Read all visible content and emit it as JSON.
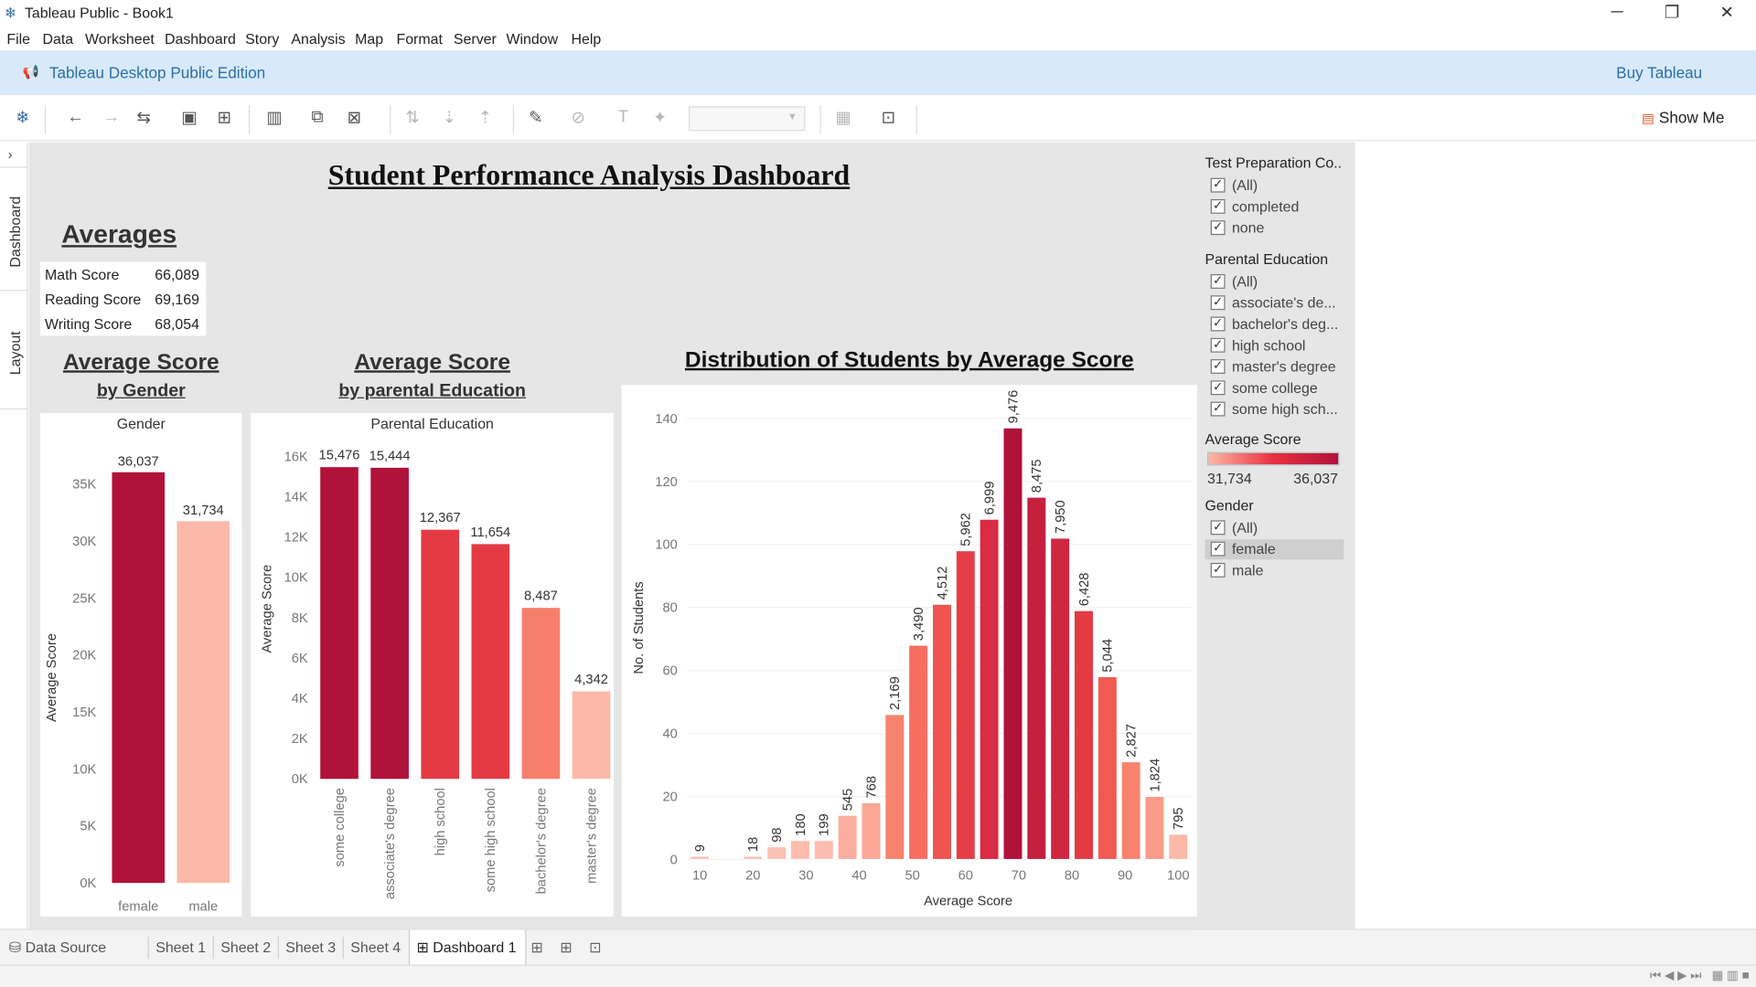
{
  "window": {
    "title": "Tableau Public - Book1",
    "controls": [
      "─",
      "❐",
      "✕"
    ]
  },
  "menu": [
    "File",
    "Data",
    "Worksheet",
    "Dashboard",
    "Story",
    "Analysis",
    "Map",
    "Format",
    "Server",
    "Window",
    "Help"
  ],
  "banner": {
    "edition": "Tableau Desktop Public Edition",
    "buy": "Buy Tableau"
  },
  "toolbar": {
    "show_me": "Show Me"
  },
  "side_tabs": [
    "Dashboard",
    "Layout"
  ],
  "dashboard": {
    "title": "Student Performance Analysis Dashboard",
    "averages_title": "Averages",
    "averages": [
      {
        "label": "Math Score",
        "value": "66,089"
      },
      {
        "label": "Reading Score",
        "value": "69,169"
      },
      {
        "label": "Writing Score",
        "value": "68,054"
      }
    ],
    "gender_title_1": "Average Score",
    "gender_title_2": "by Gender",
    "parental_title_1": "Average Score",
    "parental_title_2": "by parental Education",
    "dist_title": "Distribution of Students by Average Score"
  },
  "chart_data": [
    {
      "type": "bar",
      "header": "Gender",
      "ylabel": "Average Score",
      "ylim": [
        0,
        36037
      ],
      "yticks": [
        "0K",
        "5K",
        "10K",
        "15K",
        "20K",
        "25K",
        "30K",
        "35K"
      ],
      "categories": [
        "female",
        "male"
      ],
      "values": [
        36037,
        31734
      ],
      "labels": [
        "36,037",
        "31,734"
      ],
      "colors": [
        "#b0123a",
        "#fcb8a8"
      ]
    },
    {
      "type": "bar",
      "header": "Parental Education",
      "ylabel": "Average Score",
      "ylim": [
        0,
        16000
      ],
      "yticks": [
        "0K",
        "2K",
        "4K",
        "6K",
        "8K",
        "10K",
        "12K",
        "14K",
        "16K"
      ],
      "categories": [
        "some college",
        "associate's degree",
        "high school",
        "some high school",
        "bachelor's degree",
        "master's degree"
      ],
      "values": [
        15476,
        15444,
        12367,
        11654,
        8487,
        4342
      ],
      "labels": [
        "15,476",
        "15,444",
        "12,367",
        "11,654",
        "8,487",
        "4,342"
      ],
      "colors": [
        "#b0123a",
        "#b0123a",
        "#e33a44",
        "#e33a44",
        "#f77e6c",
        "#fcb8a8"
      ]
    },
    {
      "type": "bar",
      "title": "Distribution of Students by Average Score",
      "xlabel": "Average Score",
      "ylabel": "No. of Students",
      "xlim": [
        7.5,
        102.5
      ],
      "ylim": [
        0,
        140
      ],
      "xticks": [
        10,
        20,
        30,
        40,
        50,
        60,
        70,
        80,
        90,
        100
      ],
      "yticks": [
        0,
        20,
        40,
        60,
        80,
        100,
        120,
        140
      ],
      "bins": [
        {
          "x": 10,
          "count": 1,
          "label": "9",
          "color": "#fcc2b4"
        },
        {
          "x": 20,
          "count": 1,
          "label": "18",
          "color": "#fcc2b4"
        },
        {
          "x": 25,
          "count": 4,
          "label": "98",
          "color": "#fcc2b4"
        },
        {
          "x": 30,
          "count": 6,
          "label": "180",
          "color": "#fcbcae"
        },
        {
          "x": 35,
          "count": 6,
          "label": "199",
          "color": "#fcbcae"
        },
        {
          "x": 40,
          "count": 14,
          "label": "545",
          "color": "#fbae9e"
        },
        {
          "x": 45,
          "count": 18,
          "label": "768",
          "color": "#fba896"
        },
        {
          "x": 50,
          "count": 46,
          "label": "2,169",
          "color": "#f7836f"
        },
        {
          "x": 55,
          "count": 68,
          "label": "3,490",
          "color": "#f56e5f"
        },
        {
          "x": 60,
          "count": 81,
          "label": "4,512",
          "color": "#ee5551"
        },
        {
          "x": 65,
          "count": 98,
          "label": "5,962",
          "color": "#e63e47"
        },
        {
          "x": 70,
          "count": 108,
          "label": "6,999",
          "color": "#d82c42"
        },
        {
          "x": 75,
          "count": 137,
          "label": "9,476",
          "color": "#b0123a"
        },
        {
          "x": 80,
          "count": 115,
          "label": "8,475",
          "color": "#c51f3e"
        },
        {
          "x": 85,
          "count": 102,
          "label": "7,950",
          "color": "#d02741"
        },
        {
          "x": 90,
          "count": 79,
          "label": "6,428",
          "color": "#e33a44"
        },
        {
          "x": 95,
          "count": 58,
          "label": "5,044",
          "color": "#f05a53"
        },
        {
          "x": 100,
          "count": 31,
          "label": "2,827",
          "color": "#f7836f"
        },
        {
          "x": 105,
          "count": 20,
          "label": "1,824",
          "color": "#fa9a88"
        },
        {
          "x": 110,
          "count": 8,
          "label": "795",
          "color": "#fcb8a8"
        }
      ]
    }
  ],
  "filters": {
    "test_prep": {
      "title": "Test Preparation Co..",
      "items": [
        "(All)",
        "completed",
        "none"
      ]
    },
    "parental": {
      "title": "Parental Education",
      "items": [
        "(All)",
        "associate's de...",
        "bachelor's deg...",
        "high school",
        "master's degree",
        "some college",
        "some high sch..."
      ]
    },
    "legend": {
      "title": "Average Score",
      "min": "31,734",
      "max": "36,037"
    },
    "gender": {
      "title": "Gender",
      "items": [
        "(All)",
        "female",
        "male"
      ],
      "selected": "female"
    }
  },
  "sheet_tabs": [
    "Data Source",
    "Sheet 1",
    "Sheet 2",
    "Sheet 3",
    "Sheet 4",
    "Dashboard 1"
  ],
  "active_tab": "Dashboard 1"
}
